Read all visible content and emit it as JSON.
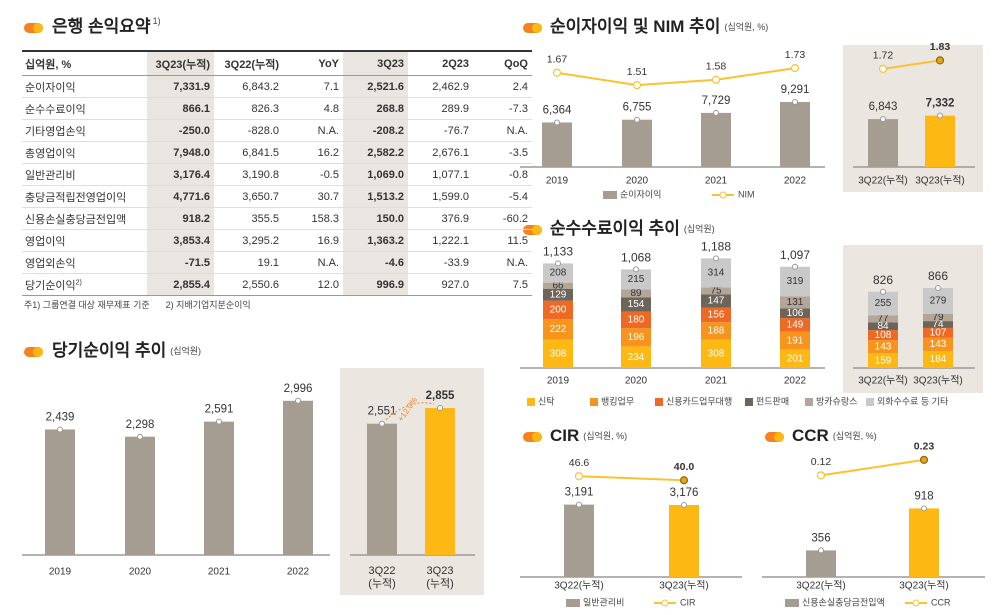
{
  "table": {
    "title": "은행 손익요약",
    "title_note": "1)",
    "header": [
      "십억원, %",
      "3Q23(누적)",
      "3Q22(누적)",
      "YoY",
      "3Q23",
      "2Q23",
      "QoQ"
    ],
    "rows": [
      {
        "cells": [
          "순이자이익",
          "7,331.9",
          "6,843.2",
          "7.1",
          "2,521.6",
          "2,462.9",
          "2.4"
        ]
      },
      {
        "cells": [
          "순수수료이익",
          "866.1",
          "826.3",
          "4.8",
          "268.8",
          "289.9",
          "-7.3"
        ]
      },
      {
        "cells": [
          "기타영업손익",
          "-250.0",
          "-828.0",
          "N.A.",
          "-208.2",
          "-76.7",
          "N.A."
        ]
      },
      {
        "cells": [
          "총영업이익",
          "7,948.0",
          "6,841.5",
          "16.2",
          "2,582.2",
          "2,676.1",
          "-3.5"
        ]
      },
      {
        "cells": [
          "일반관리비",
          "3,176.4",
          "3,190.8",
          "-0.5",
          "1,069.0",
          "1,077.1",
          "-0.8"
        ]
      },
      {
        "cells": [
          "충당금적립전영업이익",
          "4,771.6",
          "3,650.7",
          "30.7",
          "1,513.2",
          "1,599.0",
          "-5.4"
        ]
      },
      {
        "cells": [
          "신용손실충당금전입액",
          "918.2",
          "355.5",
          "158.3",
          "150.0",
          "376.9",
          "-60.2"
        ]
      },
      {
        "cells": [
          "영업이익",
          "3,853.4",
          "3,295.2",
          "16.9",
          "1,363.2",
          "1,222.1",
          "11.5"
        ]
      },
      {
        "cells": [
          "영업외손익",
          "-71.5",
          "19.1",
          "N.A.",
          "-4.6",
          "-33.9",
          "N.A."
        ]
      },
      {
        "cells": [
          "당기순이익",
          "2,855.4",
          "2,550.6",
          "12.0",
          "996.9",
          "927.0",
          "7.5"
        ],
        "note": "2)"
      }
    ],
    "footnotes": [
      "주1) 그룹연결 대상 재무제표 기준",
      "2) 지배기업지분순이익"
    ]
  },
  "chart_data": [
    {
      "type": "bar_line",
      "title": "순이자이익 및 NIM 추이",
      "subtitle": "(십억원, %)",
      "categories": [
        "2019",
        "2020",
        "2021",
        "2022"
      ],
      "series": [
        {
          "name": "순이자이익",
          "color": "#a59d92",
          "values": [
            6364,
            6755,
            7729,
            9291
          ],
          "value_labels": [
            "6,364",
            "6,755",
            "7,729",
            "9,291"
          ]
        },
        {
          "name": "NIM",
          "color": "#f9c232",
          "axis": "y2",
          "values": [
            1.67,
            1.51,
            1.58,
            1.73
          ]
        }
      ],
      "inset": {
        "categories": [
          "3Q22(누적)",
          "3Q23(누적)"
        ],
        "series": [
          {
            "colors": [
              "#a59d92",
              "#fdb813"
            ],
            "values": [
              6843,
              7332
            ],
            "value_labels": [
              "6,843",
              "7,332"
            ]
          },
          {
            "marker_colors": [
              "#ffffff",
              "#e8a317"
            ],
            "values": [
              1.72,
              1.83
            ]
          }
        ]
      },
      "ylim": [
        0,
        16000
      ],
      "y2lim": [
        0.45,
        1.9
      ]
    },
    {
      "type": "stacked_bar",
      "title": "순수수료이익 추이",
      "subtitle": "(십억원)",
      "categories": [
        "2019",
        "2020",
        "2021",
        "2022"
      ],
      "series": [
        {
          "name": "신탁",
          "color": "#fdb813",
          "values": [
            308,
            234,
            308,
            201
          ]
        },
        {
          "name": "뱅킹업무",
          "color": "#f7941d",
          "values": [
            222,
            196,
            188,
            191
          ]
        },
        {
          "name": "신용카드업무대행",
          "color": "#ee6a24",
          "values": [
            200,
            180,
            156,
            149
          ]
        },
        {
          "name": "펀드판매",
          "color": "#6e655a",
          "values": [
            129,
            154,
            147,
            106
          ]
        },
        {
          "name": "방카슈랑스",
          "color": "#b3a699",
          "values": [
            66,
            89,
            75,
            131
          ]
        },
        {
          "name": "외화수수료 등 기타",
          "color": "#c9c9c9",
          "values": [
            208,
            215,
            314,
            319
          ]
        }
      ],
      "totals": [
        1133,
        1068,
        1188,
        1097
      ],
      "total_labels": [
        "1,133",
        "1,068",
        "1,188",
        "1,097"
      ],
      "inset": {
        "categories": [
          "3Q22(누적)",
          "3Q23(누적)"
        ],
        "series": [
          {
            "values": [
              159,
              184
            ]
          },
          {
            "values": [
              143,
              143
            ]
          },
          {
            "values": [
              108,
              107
            ]
          },
          {
            "values": [
              84,
              74
            ]
          },
          {
            "values": [
              77,
              79
            ]
          },
          {
            "values": [
              255,
              279
            ]
          }
        ],
        "totals": [
          826,
          866
        ]
      },
      "ylim": [
        0,
        1300
      ]
    },
    {
      "type": "bar",
      "title": "당기순이익 추이",
      "subtitle": "(십억원)",
      "categories": [
        "2019",
        "2020",
        "2021",
        "2022"
      ],
      "series": [
        {
          "name": "당기순이익",
          "color": "#a59d92",
          "values": [
            2439,
            2298,
            2591,
            2996
          ],
          "value_labels": [
            "2,439",
            "2,298",
            "2,591",
            "2,996"
          ]
        }
      ],
      "inset": {
        "categories": [
          "3Q22\n(누적)",
          "3Q23\n(누적)"
        ],
        "series": [
          {
            "colors": [
              "#a59d92",
              "#fdb813"
            ],
            "values": [
              2551,
              2855
            ],
            "value_labels": [
              "2,551",
              "2,855"
            ]
          }
        ]
      },
      "annotation": "+12.0%",
      "ylim": [
        0,
        3400
      ]
    },
    {
      "type": "bar_line",
      "title": "CIR",
      "subtitle": "(십억원, %)",
      "categories": [
        "3Q22(누적)",
        "3Q23(누적)"
      ],
      "series": [
        {
          "name": "일반관리비",
          "color": "#a59d92",
          "colors": [
            "#a59d92",
            "#fdb813"
          ],
          "values": [
            3191,
            3176
          ],
          "value_labels": [
            "3,191",
            "3,176"
          ]
        },
        {
          "name": "CIR",
          "color": "#f9c232",
          "axis": "y2",
          "marker_colors": [
            "#ffffff",
            "#e8a317"
          ],
          "values": [
            46.6,
            40.0
          ],
          "value_labels": [
            "46.6",
            "40.0"
          ]
        }
      ],
      "ylim": [
        0,
        5600
      ],
      "y2lim": [
        -120,
        90
      ]
    },
    {
      "type": "bar_line",
      "title": "CCR",
      "subtitle": "(십억원, %)",
      "categories": [
        "3Q22(누적)",
        "3Q23(누적)"
      ],
      "series": [
        {
          "name": "신용손실충당금전입액",
          "color": "#a59d92",
          "colors": [
            "#a59d92",
            "#fdb813"
          ],
          "values": [
            356,
            918
          ]
        },
        {
          "name": "CCR",
          "color": "#f9c232",
          "axis": "y2",
          "marker_colors": [
            "#ffffff",
            "#e8a317"
          ],
          "values": [
            0.12,
            0.23
          ]
        }
      ],
      "ylim": [
        0,
        1700
      ],
      "y2lim": [
        -0.6,
        0.3
      ]
    }
  ]
}
